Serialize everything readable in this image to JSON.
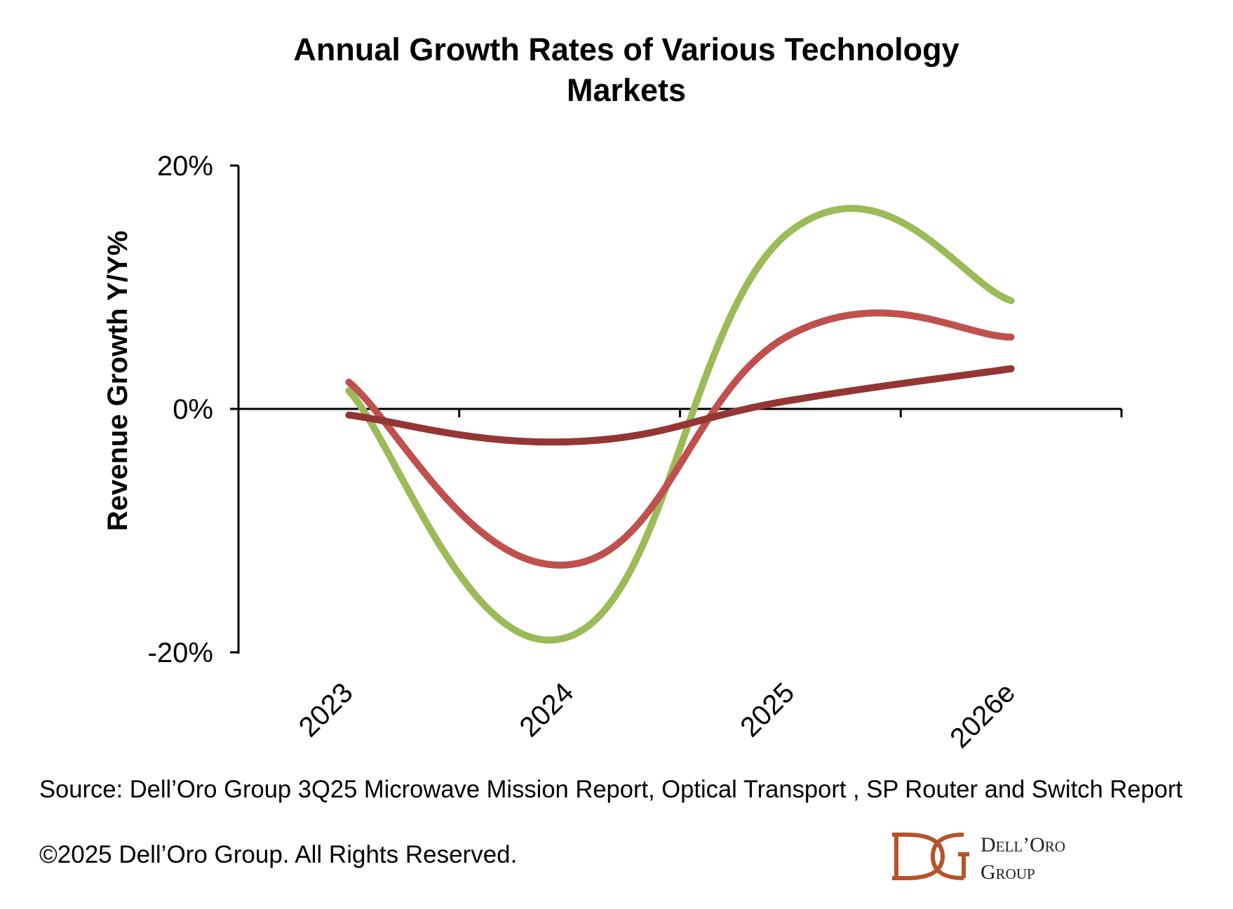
{
  "chart_data": {
    "type": "line",
    "title": "Annual Growth Rates of Various Technology Markets",
    "title_lines": [
      "Annual Growth Rates of Various Technology",
      "Markets"
    ],
    "xlabel": "",
    "ylabel": "Revenue Growth Y/Y%",
    "categories": [
      "2023",
      "2024",
      "2025",
      "2026e"
    ],
    "ylim": [
      -20,
      20
    ],
    "yticks": [
      -20,
      0,
      20
    ],
    "ytick_labels": [
      "-20%",
      "0%",
      "20%"
    ],
    "grid": false,
    "legend": "none",
    "smoothed": true,
    "series": [
      {
        "color": "#9BBB59",
        "values": [
          1.5,
          -18.7,
          14.6,
          8.9
        ]
      },
      {
        "color": "#C0504D",
        "values": [
          2.2,
          -12.8,
          6.1,
          5.9
        ]
      },
      {
        "color": "#943634",
        "values": [
          -0.5,
          -2.7,
          0.7,
          3.3
        ]
      }
    ]
  },
  "footer": {
    "source": "Source: Dell’Oro Group 3Q25 Microwave Mission Report, Optical Transport , SP Router and Switch Report",
    "copyright": "©2025 Dell’Oro Group. All Rights Reserved."
  },
  "logo": {
    "line1": "Dell’Oro",
    "line2": "Group",
    "color": "#B5532A"
  }
}
